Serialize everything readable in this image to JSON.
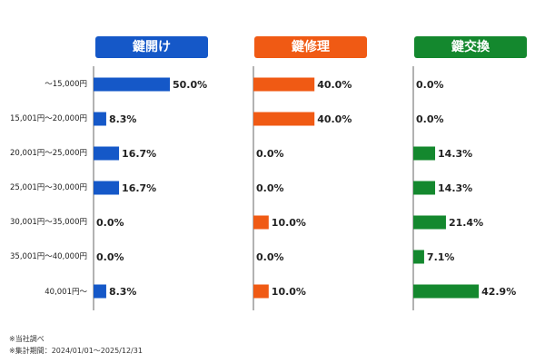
{
  "chart_data": {
    "type": "bar",
    "orientation": "horizontal",
    "categories": [
      "～15,000円",
      "15,001円～20,000円",
      "20,001円～25,000円",
      "25,001円～30,000円",
      "30,001円～35,000円",
      "35,001円～40,000円",
      "40,001円～"
    ],
    "series": [
      {
        "name": "鍵開け",
        "color": "#1558c8",
        "values": [
          50.0,
          8.3,
          16.7,
          16.7,
          0.0,
          0.0,
          8.3
        ],
        "labels": [
          "50.0%",
          "8.3%",
          "16.7%",
          "16.7%",
          "0.0%",
          "0.0%",
          "8.3%"
        ]
      },
      {
        "name": "鍵修理",
        "color": "#f05a14",
        "values": [
          40.0,
          40.0,
          0.0,
          0.0,
          10.0,
          0.0,
          10.0
        ],
        "labels": [
          "40.0%",
          "40.0%",
          "0.0%",
          "0.0%",
          "10.0%",
          "0.0%",
          "10.0%"
        ]
      },
      {
        "name": "鍵交換",
        "color": "#14882e",
        "values": [
          0.0,
          0.0,
          14.3,
          14.3,
          21.4,
          7.1,
          42.9
        ],
        "labels": [
          "0.0%",
          "0.0%",
          "14.3%",
          "14.3%",
          "21.4%",
          "7.1%",
          "42.9%"
        ]
      }
    ],
    "xlim": [
      0,
      50
    ],
    "grid": false,
    "legend": "none"
  },
  "footnotes": [
    "※当社調べ",
    "※集計期間：2024/01/01～2025/12/31"
  ]
}
